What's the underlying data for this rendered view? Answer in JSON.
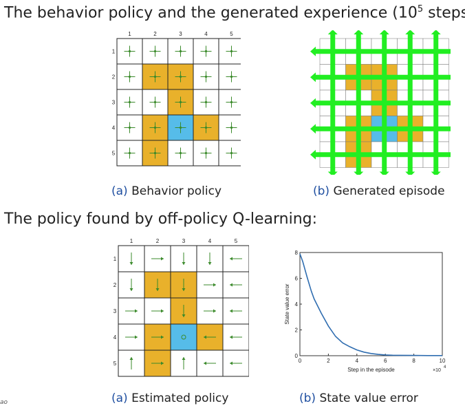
{
  "headings": {
    "top_prefix": "The behavior policy and the generated experience (10",
    "top_exp": "5",
    "top_suffix": " steps)",
    "bottom": "The policy found by off-policy Q-learning:"
  },
  "captions": {
    "a1_label": "(a)",
    "a1_text": " Behavior policy",
    "b1_label": "(b)",
    "b1_text": " Generated episode",
    "a2_label": "(a)",
    "a2_text": " Estimated policy",
    "b2_label": "(b)",
    "b2_text": " State value error"
  },
  "source_text": "ao",
  "colors": {
    "forbidden": "#e9b12b",
    "target": "#56bce9",
    "arrow": "#3a8a2a",
    "episode": "#22ee22",
    "curve": "#2f6db0"
  },
  "grid": {
    "col_labels": [
      "1",
      "2",
      "3",
      "4",
      "5"
    ],
    "row_labels": [
      "1",
      "2",
      "3",
      "4",
      "5"
    ],
    "forbidden_cells": [
      [
        2,
        2
      ],
      [
        2,
        3
      ],
      [
        3,
        3
      ],
      [
        4,
        2
      ],
      [
        4,
        4
      ],
      [
        5,
        2
      ]
    ],
    "target_cell": [
      4,
      3
    ]
  },
  "estimated_policy": [
    [
      "down",
      "right",
      "down",
      "down",
      "left"
    ],
    [
      "down",
      "down",
      "down",
      "right",
      "left"
    ],
    [
      "right",
      "right",
      "down",
      "right",
      "left"
    ],
    [
      "right",
      "right",
      "stay",
      "left",
      "left"
    ],
    [
      "up",
      "right",
      "up",
      "left",
      "left"
    ]
  ],
  "chart_data": {
    "type": "line",
    "title": "",
    "xlabel": "Step in the episode",
    "ylabel": "State value error",
    "x_multiplier_label": "×10",
    "x_multiplier_exp": "4",
    "xlim": [
      0,
      10
    ],
    "ylim": [
      0,
      8
    ],
    "xticks": [
      "0",
      "2",
      "4",
      "6",
      "8",
      "10"
    ],
    "yticks": [
      "0",
      "2",
      "4",
      "6",
      "8"
    ],
    "series": [
      {
        "x": [
          0,
          0.2,
          0.5,
          0.8,
          1,
          1.5,
          2,
          2.5,
          3,
          3.5,
          4,
          4.5,
          5,
          5.5,
          6,
          6.5,
          7,
          8,
          9,
          10
        ],
        "y": [
          7.9,
          7.3,
          6.1,
          5.0,
          4.4,
          3.3,
          2.3,
          1.5,
          1.0,
          0.7,
          0.45,
          0.28,
          0.17,
          0.1,
          0.06,
          0.04,
          0.03,
          0.02,
          0.01,
          0.01
        ]
      }
    ]
  }
}
